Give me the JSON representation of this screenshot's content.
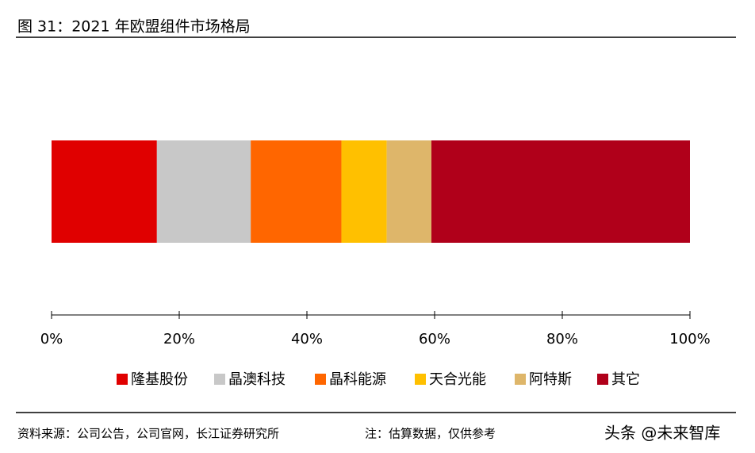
{
  "chart_data": {
    "type": "stacked-bar-horizontal",
    "title": "图 31：2021 年欧盟组件市场格局",
    "series": [
      {
        "name": "隆基股份",
        "color": "#e00000",
        "values": [
          16.5
        ]
      },
      {
        "name": "晶澳科技",
        "color": "#c8c8c8",
        "values": [
          14.7
        ]
      },
      {
        "name": "晶科能源",
        "color": "#ff6600",
        "values": [
          14.2
        ]
      },
      {
        "name": "天合光能",
        "color": "#ffc000",
        "values": [
          7.1
        ]
      },
      {
        "name": "阿特斯",
        "color": "#deb66a",
        "values": [
          7.0
        ]
      },
      {
        "name": "其它",
        "color": "#b0001a",
        "values": [
          40.5
        ]
      }
    ],
    "xlim": [
      0,
      100
    ],
    "xticks": [
      {
        "value": 0,
        "label": "0%"
      },
      {
        "value": 20,
        "label": "20%"
      },
      {
        "value": 40,
        "label": "40%"
      },
      {
        "value": 60,
        "label": "60%"
      },
      {
        "value": 80,
        "label": "80%"
      },
      {
        "value": 100,
        "label": "100%"
      }
    ],
    "source": "资料来源：公司公告，公司官网，长江证券研究所",
    "note": "注：估算数据，仅供参考",
    "watermark": "头条 @未来智库"
  }
}
